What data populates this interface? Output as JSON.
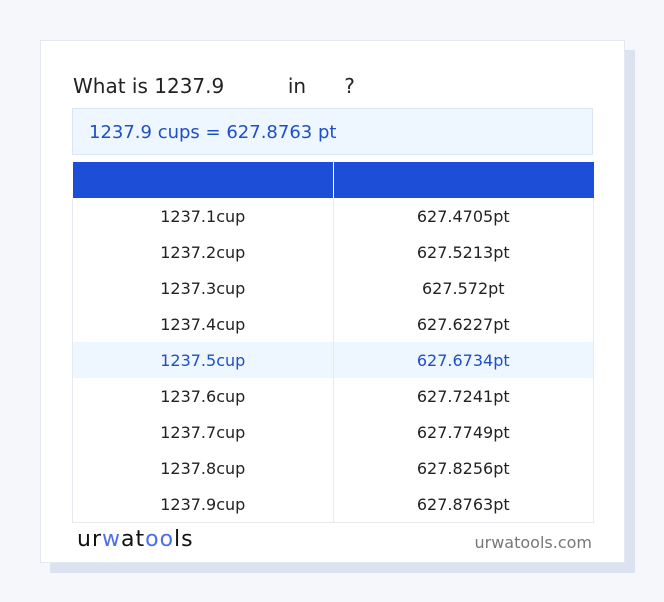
{
  "question": {
    "prefix": "What is 1237.9",
    "mid": "in",
    "suffix": "?"
  },
  "result": "1237.9 cups = 627.8763 pt",
  "table": {
    "headers": [
      "",
      ""
    ],
    "rows": [
      [
        "1237.1cup",
        "627.4705pt"
      ],
      [
        "1237.2cup",
        "627.5213pt"
      ],
      [
        "1237.3cup",
        "627.572pt"
      ],
      [
        "1237.4cup",
        "627.6227pt"
      ],
      [
        "1237.5cup",
        "627.6734pt"
      ],
      [
        "1237.6cup",
        "627.7241pt"
      ],
      [
        "1237.7cup",
        "627.7749pt"
      ],
      [
        "1237.8cup",
        "627.8256pt"
      ],
      [
        "1237.9cup",
        "627.8763pt"
      ]
    ],
    "highlighted_row": 4
  },
  "footer": {
    "logo": "urwatools",
    "site": "urwatools.com"
  },
  "colors": {
    "accent": "#1d4ed8",
    "highlight_bg": "#eef6ff"
  }
}
